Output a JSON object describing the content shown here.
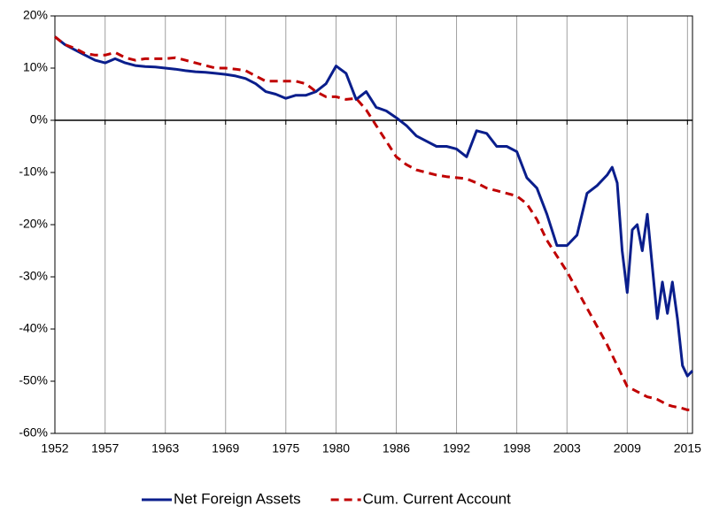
{
  "chart_data": {
    "type": "line",
    "x": [
      1952,
      1953,
      1954,
      1955,
      1956,
      1957,
      1958,
      1959,
      1960,
      1961,
      1962,
      1963,
      1964,
      1965,
      1966,
      1967,
      1968,
      1969,
      1970,
      1971,
      1972,
      1973,
      1974,
      1975,
      1976,
      1977,
      1978,
      1979,
      1980,
      1981,
      1982,
      1983,
      1984,
      1985,
      1986,
      1987,
      1988,
      1989,
      1990,
      1991,
      1992,
      1993,
      1994,
      1995,
      1996,
      1997,
      1998,
      1999,
      2000,
      2001,
      2002,
      2003,
      2004,
      2005,
      2006,
      2007,
      2007.5,
      2008,
      2008.5,
      2009,
      2009.5,
      2010,
      2010.5,
      2011,
      2011.5,
      2012,
      2012.5,
      2013,
      2013.5,
      2014,
      2014.5,
      2015,
      2015.5
    ],
    "series": [
      {
        "name": "Net Foreign Assets",
        "color": "#0a1e8c",
        "dash": false,
        "values": [
          16,
          14.5,
          13.5,
          12.5,
          11.5,
          11,
          11.8,
          11,
          10.5,
          10.3,
          10.2,
          10,
          9.8,
          9.5,
          9.3,
          9.2,
          9,
          8.8,
          8.5,
          8,
          7,
          5.5,
          5,
          4.2,
          4.8,
          4.8,
          5.5,
          7,
          10.4,
          9,
          4,
          5.5,
          2.5,
          1.8,
          0.5,
          -1,
          -3,
          -4,
          -5,
          -5,
          -5.5,
          -7,
          -2,
          -2.5,
          -5,
          -5,
          -6,
          -11,
          -13,
          -18,
          -24,
          -24,
          -22,
          -14,
          -12.5,
          -10.5,
          -9,
          -12,
          -25,
          -33,
          -21,
          -20,
          -25,
          -18,
          -28,
          -38,
          -31,
          -37,
          -31,
          -38,
          -47,
          -49,
          -48
        ]
      },
      {
        "name": "Cum. Current Account",
        "color": "#c00000",
        "dash": true,
        "values": [
          16,
          14.5,
          13.8,
          12.8,
          12.5,
          12.5,
          13,
          12,
          11.5,
          11.8,
          11.8,
          11.8,
          12,
          11.5,
          11,
          10.5,
          10,
          10,
          9.8,
          9.5,
          8.5,
          7.5,
          7.5,
          7.5,
          7.5,
          7,
          5.5,
          4.5,
          4.5,
          4,
          4.2,
          2,
          -1,
          -4,
          -7,
          -8.5,
          -9.5,
          -10,
          -10.5,
          -10.8,
          -11,
          -11.2,
          -12,
          -13,
          -13.5,
          -14,
          -14.5,
          -16,
          -19,
          -23,
          -26,
          -29,
          -32.5,
          -36,
          -39.5,
          -43,
          -45,
          -47,
          -49,
          -51,
          -51.5,
          -52,
          -52.5,
          -53,
          -53.2,
          -53.5,
          -54,
          -54.5,
          -54.8,
          -55,
          -55.2,
          -55.5,
          -55.5
        ]
      }
    ],
    "xlim": [
      1952,
      2015.5
    ],
    "xticks": [
      1952,
      1957,
      1963,
      1969,
      1975,
      1980,
      1986,
      1992,
      1998,
      2003,
      2009,
      2015
    ],
    "ylim": [
      -60,
      20
    ],
    "yticks": [
      {
        "value": -60,
        "label": "-60%"
      },
      {
        "value": -50,
        "label": "-50%"
      },
      {
        "value": -40,
        "label": "-40%"
      },
      {
        "value": -30,
        "label": "-30%"
      },
      {
        "value": -20,
        "label": "-20%"
      },
      {
        "value": -10,
        "label": "-10%"
      },
      {
        "value": 0,
        "label": "0%"
      },
      {
        "value": 10,
        "label": "10%"
      },
      {
        "value": 20,
        "label": "20%"
      }
    ],
    "grid": "x",
    "legend": "bottom"
  }
}
